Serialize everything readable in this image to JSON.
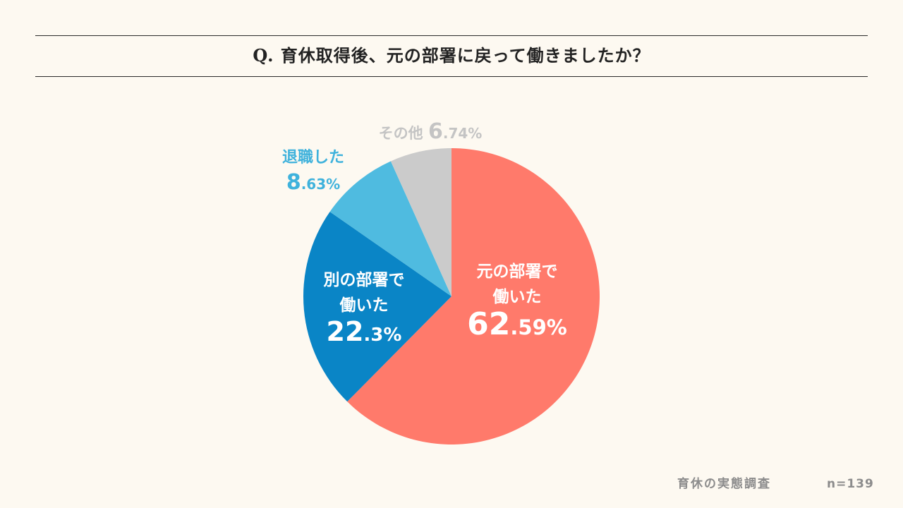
{
  "header": {
    "question": "Q. 育休取得後、元の部署に戻って働きましたか？"
  },
  "footer": {
    "source": "育休の実態調査",
    "sample_size": "n=139"
  },
  "chart_data": {
    "type": "pie",
    "title": "Q. 育休取得後、元の部署に戻って働きましたか？",
    "start_angle_deg": 0,
    "direction": "clockwise",
    "slices": [
      {
        "key": "same",
        "name": "元の部署で働いた",
        "label_lines": [
          "元の部署で",
          "働いた"
        ],
        "value": 62.59,
        "pct_main": "62",
        "pct_sub": ".59%",
        "color": "#ff7a6b",
        "text_color": "#ffffff"
      },
      {
        "key": "other_dept",
        "name": "別の部署で働いた",
        "label_lines": [
          "別の部署で",
          "働いた"
        ],
        "value": 22.3,
        "pct_main": "22",
        "pct_sub": ".3%",
        "color": "#0a85c6",
        "text_color": "#ffffff"
      },
      {
        "key": "resigned",
        "name": "退職した",
        "label_lines": [
          "退職した"
        ],
        "value": 8.63,
        "pct_main": "8",
        "pct_sub": ".63%",
        "color": "#4fbbe0",
        "text_color": "#3fb2dc"
      },
      {
        "key": "other",
        "name": "その他",
        "label_lines": [
          "その他"
        ],
        "value": 6.74,
        "pct_main": "6",
        "pct_sub": ".74%",
        "color": "#cbcbcb",
        "text_color": "#c4c4c4"
      }
    ]
  }
}
